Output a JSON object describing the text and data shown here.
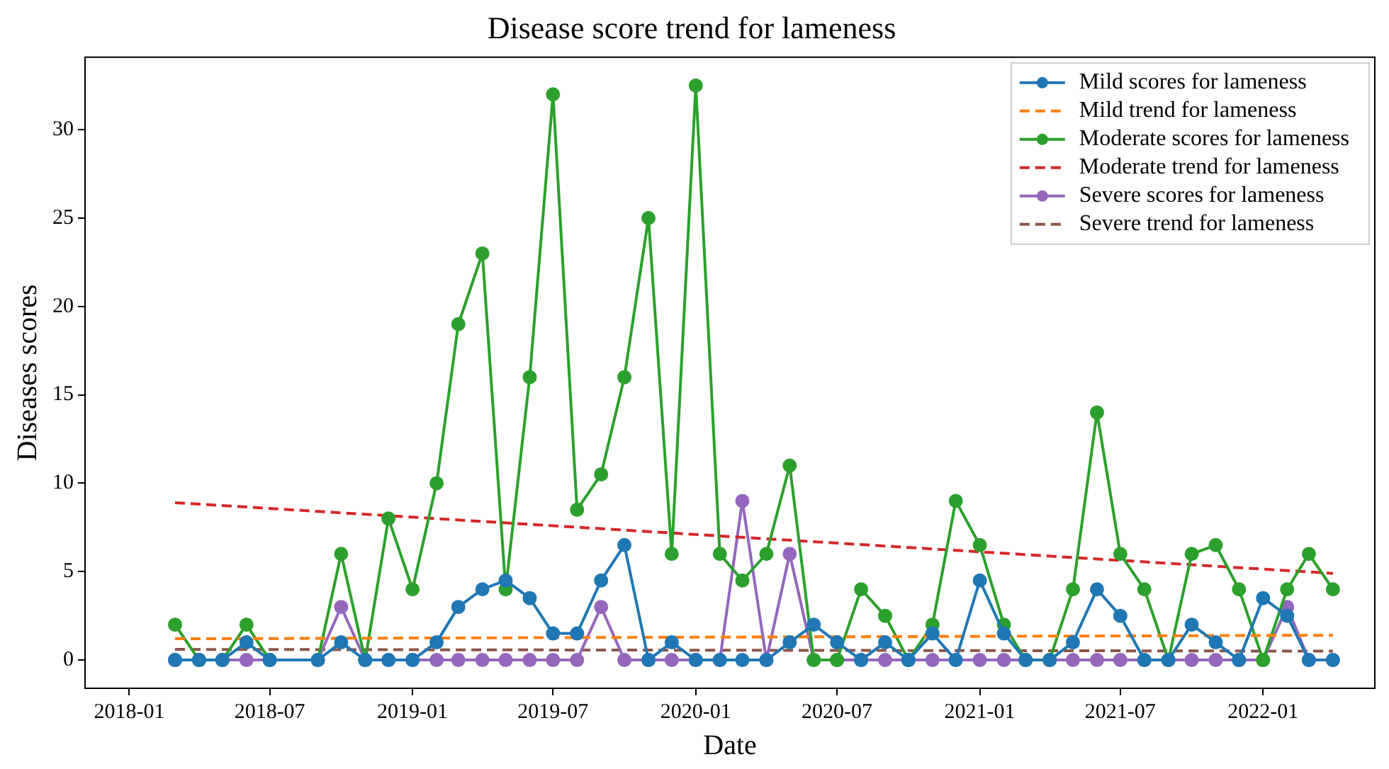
{
  "chart_data": {
    "type": "line",
    "title": "Disease score trend for lameness",
    "xlabel": "Date",
    "ylabel": "Diseases scores",
    "x": [
      "2018-03",
      "2018-04",
      "2018-05",
      "2018-06",
      "2018-07",
      "2018-09",
      "2018-10",
      "2018-11",
      "2018-12",
      "2019-01",
      "2019-02",
      "2019-03",
      "2019-04",
      "2019-05",
      "2019-06",
      "2019-07",
      "2019-08",
      "2019-09",
      "2019-10",
      "2019-11",
      "2019-12",
      "2020-01",
      "2020-02",
      "2020-03",
      "2020-04",
      "2020-05",
      "2020-06",
      "2020-07",
      "2020-08",
      "2020-09",
      "2020-10",
      "2020-11",
      "2020-12",
      "2021-01",
      "2021-02",
      "2021-03",
      "2021-04",
      "2021-05",
      "2021-06",
      "2021-07",
      "2021-08",
      "2021-09",
      "2021-10",
      "2021-11",
      "2021-12",
      "2022-01",
      "2022-02",
      "2022-03",
      "2022-04"
    ],
    "series": [
      {
        "name": "Mild scores for lameness",
        "color": "#1f77b4",
        "marker": "circle",
        "line_style": "solid",
        "values": [
          0,
          0,
          0,
          1,
          0,
          0,
          1,
          0,
          0,
          0,
          1,
          3,
          4,
          4.5,
          3.5,
          1.5,
          1.5,
          4.5,
          6.5,
          0,
          1,
          0,
          0,
          0,
          0,
          1,
          2,
          1,
          0,
          1,
          0,
          1.5,
          0,
          4.5,
          1.5,
          0,
          0,
          1,
          4,
          2.5,
          0,
          0,
          2,
          1,
          0,
          3.5,
          2.5,
          0,
          0
        ]
      },
      {
        "name": "Mild trend for lameness",
        "color": "#ff7f0e",
        "marker": "none",
        "line_style": "dashed",
        "x": [
          "2018-03",
          "2022-04"
        ],
        "values": [
          1.2,
          1.4
        ]
      },
      {
        "name": "Moderate scores for lameness",
        "color": "#2ca02c",
        "marker": "circle",
        "line_style": "solid",
        "values": [
          2,
          0,
          0,
          2,
          0,
          0,
          6,
          0,
          8,
          4,
          10,
          19,
          23,
          4,
          16,
          32,
          8.5,
          10.5,
          16,
          25,
          6,
          32.5,
          6,
          4.5,
          6,
          11,
          0,
          0,
          4,
          2.5,
          0,
          2,
          9,
          6.5,
          2,
          0,
          0,
          4,
          14,
          6,
          4,
          0,
          6,
          6.5,
          4,
          0,
          4,
          6,
          4
        ]
      },
      {
        "name": "Moderate trend for lameness",
        "color": "#d62728",
        "marker": "none",
        "line_style": "dashed",
        "x": [
          "2018-03",
          "2022-04"
        ],
        "values": [
          8.9,
          4.9
        ]
      },
      {
        "name": "Severe scores for lameness",
        "color": "#9467bd",
        "marker": "circle",
        "line_style": "solid",
        "values": [
          0,
          0,
          0,
          0,
          0,
          0,
          3,
          0,
          0,
          0,
          0,
          0,
          0,
          0,
          0,
          0,
          0,
          3,
          0,
          0,
          0,
          0,
          0,
          9,
          0,
          6,
          0,
          0,
          0,
          0,
          0,
          0,
          0,
          0,
          0,
          0,
          0,
          0,
          0,
          0,
          0,
          0,
          0,
          0,
          0,
          0,
          3,
          0,
          0
        ]
      },
      {
        "name": "Severe trend for lameness",
        "color": "#8c564b",
        "marker": "none",
        "line_style": "dashed",
        "x": [
          "2018-03",
          "2022-04"
        ],
        "values": [
          0.6,
          0.5
        ]
      }
    ],
    "xlim": [
      "2017-11-05",
      "2022-05-25"
    ],
    "xticks": [
      "2018-01",
      "2018-07",
      "2019-01",
      "2019-07",
      "2020-01",
      "2020-07",
      "2021-01",
      "2021-07",
      "2022-01"
    ],
    "ylim": [
      -1.6,
      34.1
    ],
    "yticks": [
      0,
      5,
      10,
      15,
      20,
      25,
      30
    ],
    "grid": false,
    "legend": "top right"
  }
}
